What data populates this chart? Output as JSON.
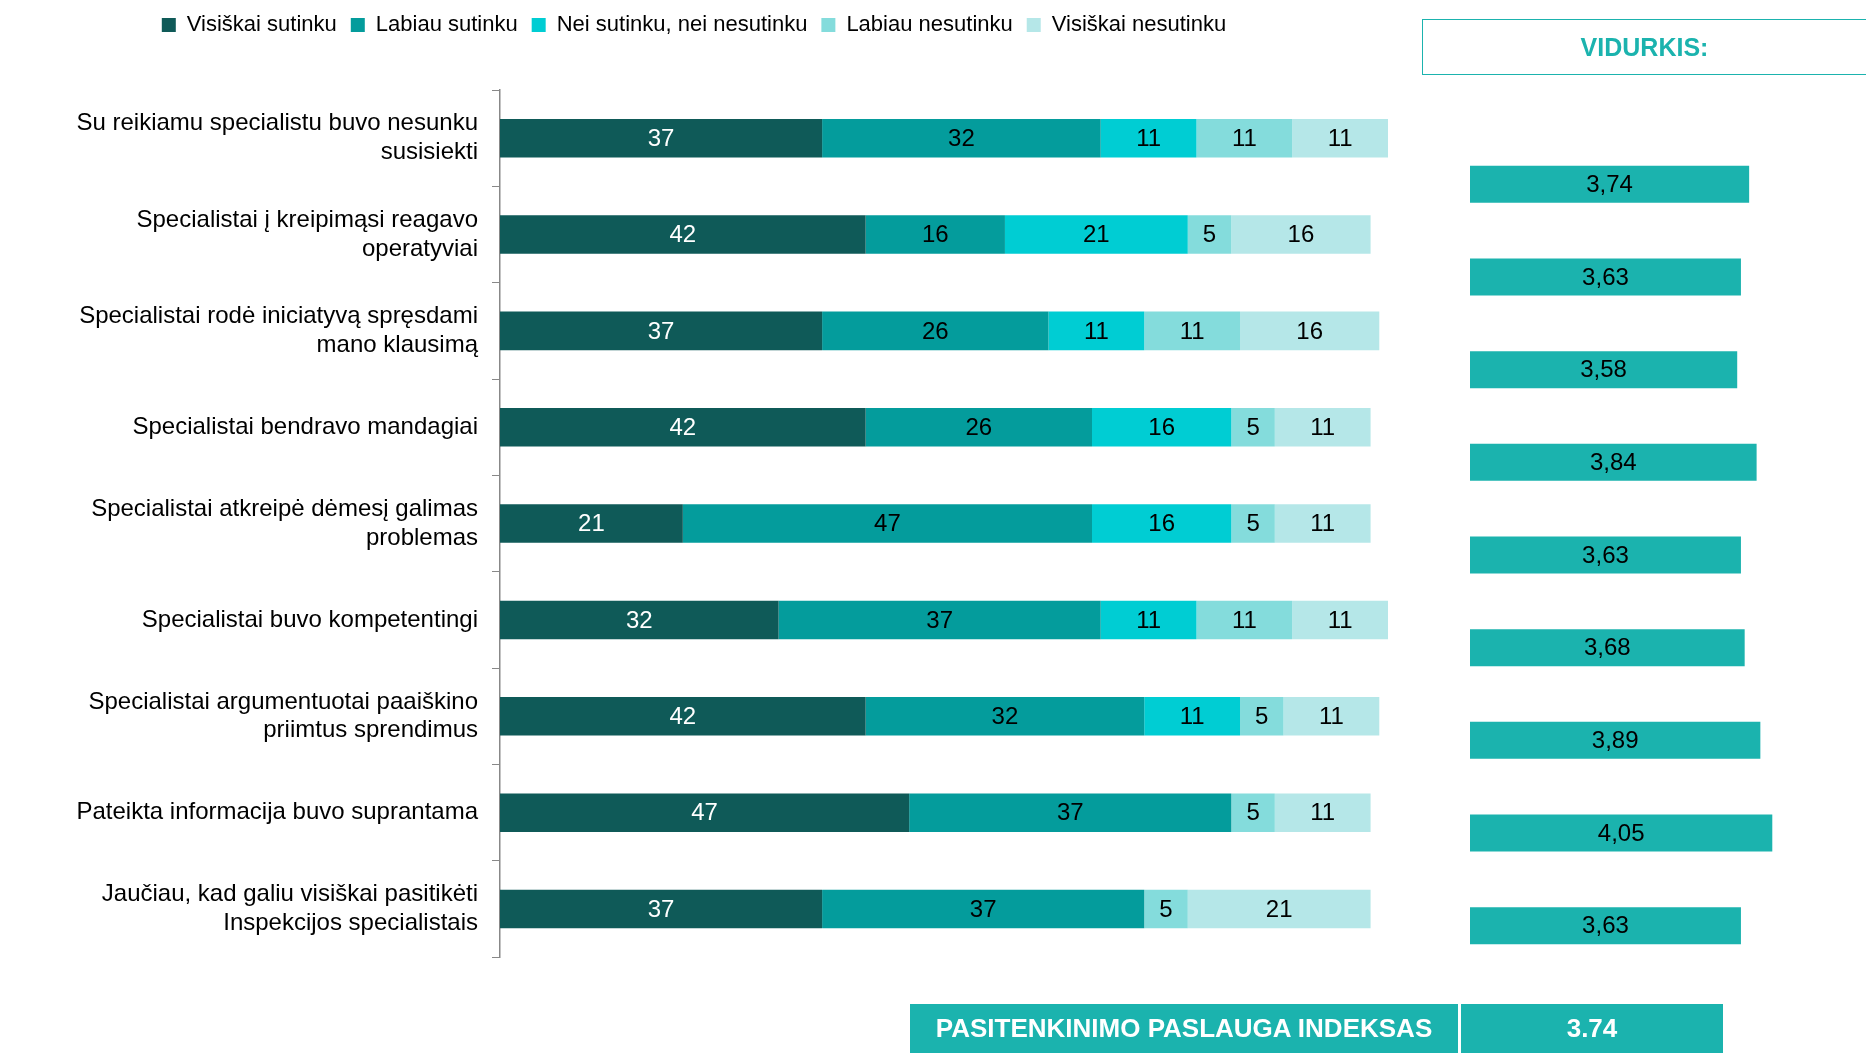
{
  "chart_data": [
    {
      "type": "bar",
      "orientation": "horizontal",
      "stacked": true,
      "legend": "top",
      "tick_labels": "y",
      "data_labels": true,
      "categories": [
        "Su reikiamu specialistu buvo nesunku susisiekti",
        "Specialistai į kreipimąsi reagavo operatyviai",
        "Specialistai rodė iniciatyvą spręsdami mano klausimą",
        "Specialistai bendravo mandagiai",
        "Specialistai atkreipė dėmesį galimas problemas",
        "Specialistai buvo kompetentingi",
        "Specialistai argumentuotai paaiškino priimtus sprendimus",
        "Pateikta informacija buvo suprantama",
        "Jaučiau, kad galiu visiškai pasitikėti Inspekcijos specialistais"
      ],
      "series": [
        {
          "name": "Visiškai sutinku",
          "color": "#0f5a58",
          "values": [
            37,
            42,
            37,
            42,
            21,
            32,
            42,
            47,
            37
          ]
        },
        {
          "name": "Labiau sutinku",
          "color": "#049c9c",
          "values": [
            32,
            16,
            26,
            26,
            47,
            37,
            32,
            37,
            37
          ]
        },
        {
          "name": "Nei sutinku, nei nesutinku",
          "color": "#00cdd3",
          "values": [
            11,
            21,
            11,
            16,
            16,
            11,
            11,
            null,
            null
          ]
        },
        {
          "name": "Labiau nesutinku",
          "color": "#84dcdc",
          "values": [
            11,
            5,
            11,
            5,
            5,
            11,
            5,
            5,
            5
          ]
        },
        {
          "name": "Visiškai nesutinku",
          "color": "#b5e7e8",
          "values": [
            11,
            16,
            16,
            11,
            11,
            11,
            11,
            11,
            21
          ]
        }
      ]
    },
    {
      "type": "bar",
      "orientation": "horizontal",
      "title": "VIDURKIS:",
      "tick_labels": false,
      "color": "#1bb3ae",
      "categories": [
        null,
        null,
        null,
        null,
        null,
        null,
        null,
        null,
        null
      ],
      "values": [
        3.74,
        3.63,
        3.58,
        3.84,
        3.63,
        3.68,
        3.89,
        4.05,
        3.63
      ],
      "value_labels": [
        "3,74",
        "3,63",
        "3,58",
        "3,84",
        "3,63",
        "3,68",
        "3,89",
        "4,05",
        "3,63"
      ],
      "annotations": [
        "PASITENKINIMO PASLAUGA INDEKSAS",
        "3.74"
      ]
    }
  ]
}
